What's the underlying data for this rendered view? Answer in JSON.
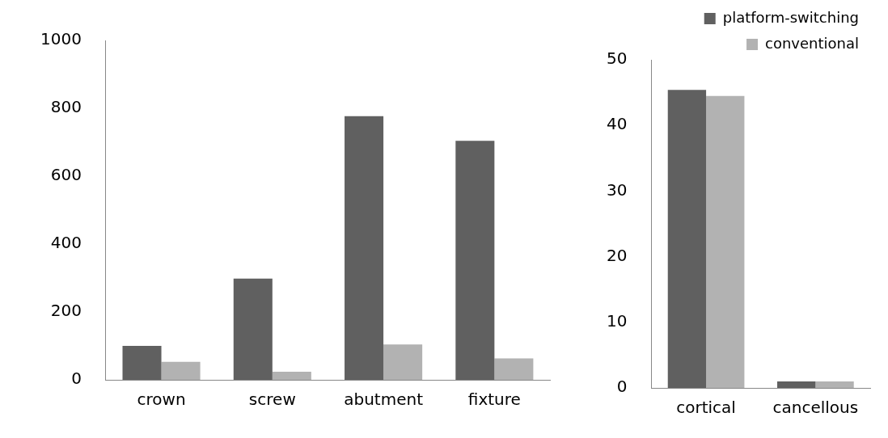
{
  "chart_data": [
    {
      "type": "bar",
      "categories": [
        "crown",
        "screw",
        "abutment",
        "fixture"
      ],
      "series": [
        {
          "color": "#606060",
          "values": [
            100,
            298,
            777,
            704
          ]
        },
        {
          "color": "#b2b2b2",
          "values": [
            53,
            24,
            104,
            63
          ]
        }
      ],
      "ylim": [
        0,
        1000
      ],
      "yticks": [
        0,
        200,
        400,
        600,
        800,
        1000
      ],
      "grid": false,
      "legend": false
    },
    {
      "type": "bar",
      "categories": [
        "cortical",
        "cancellous"
      ],
      "series": [
        {
          "name": "platform-switching",
          "color": "#606060",
          "values": [
            45.4,
            1
          ]
        },
        {
          "name": "conventional",
          "color": "#b2b2b2",
          "values": [
            44.5,
            1
          ]
        }
      ],
      "ylim": [
        0,
        50
      ],
      "yticks": [
        0,
        10,
        20,
        30,
        40,
        50
      ],
      "grid": false,
      "legend": "top right"
    }
  ]
}
